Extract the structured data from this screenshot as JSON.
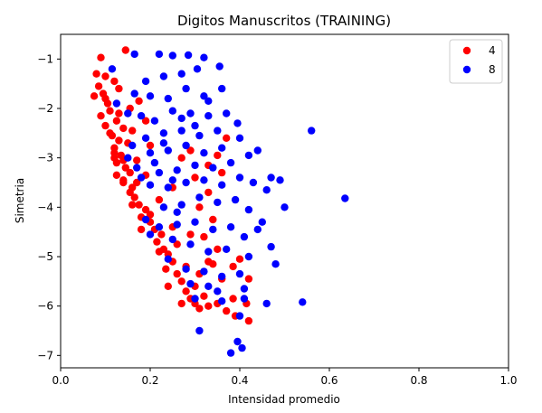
{
  "chart_data": {
    "type": "scatter",
    "title": "Digitos Manuscritos (TRAINING)",
    "xlabel": "Intensidad promedio",
    "ylabel": "Simetria",
    "xlim": [
      0.0,
      1.0
    ],
    "ylim": [
      -7.25,
      -0.5
    ],
    "xticks": [
      0.0,
      0.2,
      0.4,
      0.6,
      0.8,
      1.0
    ],
    "xtick_labels": [
      "0.0",
      "0.2",
      "0.4",
      "0.6",
      "0.8",
      "1.0"
    ],
    "yticks": [
      -1,
      -2,
      -3,
      -4,
      -5,
      -6,
      -7
    ],
    "ytick_labels": [
      "−1",
      "−2",
      "−3",
      "−4",
      "−5",
      "−6",
      "−7"
    ],
    "grid": false,
    "legend_position": "top-right",
    "series": [
      {
        "name": "4",
        "color": "#ff0000",
        "points": [
          [
            0.09,
            -0.97
          ],
          [
            0.145,
            -0.82
          ],
          [
            0.08,
            -1.3
          ],
          [
            0.1,
            -1.35
          ],
          [
            0.12,
            -1.45
          ],
          [
            0.085,
            -1.55
          ],
          [
            0.095,
            -1.7
          ],
          [
            0.075,
            -1.75
          ],
          [
            0.105,
            -1.9
          ],
          [
            0.13,
            -1.6
          ],
          [
            0.11,
            -2.05
          ],
          [
            0.09,
            -2.15
          ],
          [
            0.125,
            -2.25
          ],
          [
            0.1,
            -2.35
          ],
          [
            0.14,
            -2.4
          ],
          [
            0.115,
            -2.55
          ],
          [
            0.13,
            -2.65
          ],
          [
            0.12,
            -2.8
          ],
          [
            0.15,
            -2.7
          ],
          [
            0.135,
            -2.95
          ],
          [
            0.125,
            -3.1
          ],
          [
            0.145,
            -3.2
          ],
          [
            0.125,
            -3.35
          ],
          [
            0.155,
            -3.3
          ],
          [
            0.14,
            -3.5
          ],
          [
            0.16,
            -3.6
          ],
          [
            0.165,
            -3.8
          ],
          [
            0.175,
            -3.95
          ],
          [
            0.155,
            -3.7
          ],
          [
            0.19,
            -4.05
          ],
          [
            0.18,
            -4.2
          ],
          [
            0.2,
            -4.3
          ],
          [
            0.21,
            -4.45
          ],
          [
            0.225,
            -4.55
          ],
          [
            0.215,
            -4.7
          ],
          [
            0.23,
            -4.85
          ],
          [
            0.24,
            -4.95
          ],
          [
            0.25,
            -5.1
          ],
          [
            0.235,
            -5.25
          ],
          [
            0.26,
            -5.35
          ],
          [
            0.27,
            -5.5
          ],
          [
            0.24,
            -5.6
          ],
          [
            0.28,
            -5.7
          ],
          [
            0.29,
            -5.85
          ],
          [
            0.3,
            -5.95
          ],
          [
            0.31,
            -6.05
          ],
          [
            0.33,
            -6.0
          ],
          [
            0.35,
            -5.95
          ],
          [
            0.37,
            -6.1
          ],
          [
            0.385,
            -5.85
          ],
          [
            0.39,
            -6.2
          ],
          [
            0.42,
            -6.3
          ],
          [
            0.415,
            -5.95
          ],
          [
            0.36,
            -5.45
          ],
          [
            0.385,
            -5.2
          ],
          [
            0.33,
            -5.1
          ],
          [
            0.35,
            -4.85
          ],
          [
            0.32,
            -4.6
          ],
          [
            0.34,
            -4.25
          ],
          [
            0.31,
            -4.0
          ],
          [
            0.33,
            -3.7
          ],
          [
            0.3,
            -3.4
          ],
          [
            0.33,
            -3.15
          ],
          [
            0.29,
            -2.85
          ],
          [
            0.35,
            -2.95
          ],
          [
            0.37,
            -2.6
          ],
          [
            0.42,
            -5.45
          ],
          [
            0.4,
            -5.05
          ],
          [
            0.36,
            -3.3
          ],
          [
            0.27,
            -3.0
          ],
          [
            0.25,
            -3.6
          ],
          [
            0.22,
            -3.85
          ],
          [
            0.19,
            -3.35
          ],
          [
            0.17,
            -3.05
          ],
          [
            0.2,
            -2.75
          ],
          [
            0.16,
            -2.45
          ],
          [
            0.19,
            -2.25
          ],
          [
            0.155,
            -2.0
          ],
          [
            0.175,
            -1.85
          ],
          [
            0.1,
            -1.8
          ],
          [
            0.12,
            -3.0
          ],
          [
            0.14,
            -3.45
          ],
          [
            0.13,
            -2.1
          ],
          [
            0.16,
            -3.95
          ],
          [
            0.18,
            -4.45
          ],
          [
            0.2,
            -4.15
          ],
          [
            0.22,
            -4.9
          ],
          [
            0.26,
            -4.75
          ],
          [
            0.28,
            -5.2
          ],
          [
            0.3,
            -5.6
          ],
          [
            0.27,
            -5.95
          ],
          [
            0.32,
            -5.8
          ],
          [
            0.25,
            -4.4
          ],
          [
            0.29,
            -4.55
          ],
          [
            0.31,
            -5.35
          ],
          [
            0.34,
            -5.15
          ],
          [
            0.11,
            -2.5
          ],
          [
            0.12,
            -2.9
          ],
          [
            0.14,
            -3.05
          ],
          [
            0.17,
            -3.5
          ]
        ]
      },
      {
        "name": "8",
        "color": "#0000ff",
        "points": [
          [
            0.115,
            -1.2
          ],
          [
            0.165,
            -0.9
          ],
          [
            0.22,
            -0.9
          ],
          [
            0.25,
            -0.93
          ],
          [
            0.285,
            -0.92
          ],
          [
            0.32,
            -0.97
          ],
          [
            0.355,
            -1.15
          ],
          [
            0.305,
            -1.2
          ],
          [
            0.27,
            -1.3
          ],
          [
            0.23,
            -1.35
          ],
          [
            0.19,
            -1.45
          ],
          [
            0.165,
            -1.7
          ],
          [
            0.2,
            -1.75
          ],
          [
            0.24,
            -1.8
          ],
          [
            0.28,
            -1.6
          ],
          [
            0.32,
            -1.75
          ],
          [
            0.36,
            -1.6
          ],
          [
            0.33,
            -1.85
          ],
          [
            0.125,
            -1.9
          ],
          [
            0.15,
            -2.1
          ],
          [
            0.18,
            -2.15
          ],
          [
            0.21,
            -2.25
          ],
          [
            0.25,
            -2.05
          ],
          [
            0.29,
            -2.1
          ],
          [
            0.33,
            -2.15
          ],
          [
            0.37,
            -2.1
          ],
          [
            0.395,
            -2.3
          ],
          [
            0.35,
            -2.45
          ],
          [
            0.31,
            -2.55
          ],
          [
            0.27,
            -2.45
          ],
          [
            0.23,
            -2.5
          ],
          [
            0.19,
            -2.6
          ],
          [
            0.16,
            -2.75
          ],
          [
            0.2,
            -2.9
          ],
          [
            0.24,
            -2.85
          ],
          [
            0.28,
            -2.75
          ],
          [
            0.32,
            -2.9
          ],
          [
            0.36,
            -2.8
          ],
          [
            0.4,
            -2.6
          ],
          [
            0.42,
            -2.95
          ],
          [
            0.44,
            -2.85
          ],
          [
            0.38,
            -3.1
          ],
          [
            0.34,
            -3.2
          ],
          [
            0.3,
            -3.15
          ],
          [
            0.26,
            -3.25
          ],
          [
            0.22,
            -3.3
          ],
          [
            0.18,
            -3.4
          ],
          [
            0.2,
            -3.55
          ],
          [
            0.24,
            -3.6
          ],
          [
            0.28,
            -3.5
          ],
          [
            0.32,
            -3.45
          ],
          [
            0.36,
            -3.55
          ],
          [
            0.4,
            -3.4
          ],
          [
            0.43,
            -3.5
          ],
          [
            0.46,
            -3.65
          ],
          [
            0.47,
            -3.4
          ],
          [
            0.49,
            -3.45
          ],
          [
            0.5,
            -4.0
          ],
          [
            0.45,
            -4.3
          ],
          [
            0.42,
            -4.05
          ],
          [
            0.39,
            -3.85
          ],
          [
            0.35,
            -3.9
          ],
          [
            0.31,
            -3.8
          ],
          [
            0.27,
            -3.95
          ],
          [
            0.23,
            -4.0
          ],
          [
            0.19,
            -4.25
          ],
          [
            0.22,
            -4.4
          ],
          [
            0.26,
            -4.35
          ],
          [
            0.3,
            -4.3
          ],
          [
            0.34,
            -4.45
          ],
          [
            0.38,
            -4.4
          ],
          [
            0.41,
            -4.6
          ],
          [
            0.44,
            -4.45
          ],
          [
            0.47,
            -4.8
          ],
          [
            0.42,
            -5.0
          ],
          [
            0.37,
            -4.85
          ],
          [
            0.33,
            -4.9
          ],
          [
            0.29,
            -4.75
          ],
          [
            0.25,
            -4.65
          ],
          [
            0.2,
            -4.55
          ],
          [
            0.24,
            -5.05
          ],
          [
            0.28,
            -5.25
          ],
          [
            0.32,
            -5.3
          ],
          [
            0.36,
            -5.4
          ],
          [
            0.4,
            -5.35
          ],
          [
            0.48,
            -5.15
          ],
          [
            0.29,
            -5.55
          ],
          [
            0.33,
            -5.6
          ],
          [
            0.35,
            -5.7
          ],
          [
            0.41,
            -5.65
          ],
          [
            0.3,
            -5.85
          ],
          [
            0.36,
            -5.9
          ],
          [
            0.41,
            -5.85
          ],
          [
            0.46,
            -5.95
          ],
          [
            0.54,
            -5.92
          ],
          [
            0.31,
            -6.5
          ],
          [
            0.4,
            -6.2
          ],
          [
            0.395,
            -6.72
          ],
          [
            0.38,
            -6.95
          ],
          [
            0.405,
            -6.85
          ],
          [
            0.56,
            -2.45
          ],
          [
            0.635,
            -3.82
          ],
          [
            0.21,
            -3.1
          ],
          [
            0.23,
            -2.7
          ],
          [
            0.25,
            -3.45
          ],
          [
            0.27,
            -2.2
          ],
          [
            0.17,
            -3.2
          ],
          [
            0.15,
            -3.0
          ],
          [
            0.26,
            -4.1
          ],
          [
            0.3,
            -2.35
          ]
        ]
      }
    ]
  }
}
